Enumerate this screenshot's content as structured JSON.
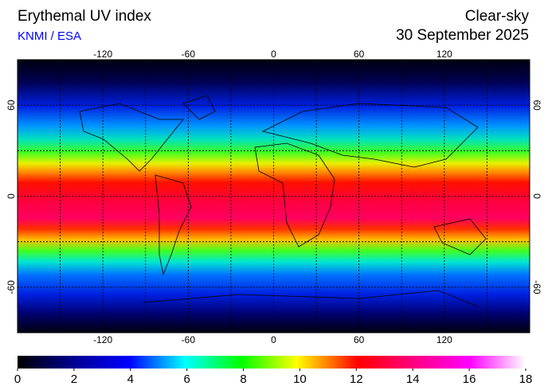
{
  "header": {
    "title": "Erythemal UV index",
    "source": "KNMI / ESA",
    "condition": "Clear-sky",
    "date": "30 September 2025"
  },
  "map": {
    "lonlim": [
      -180,
      180
    ],
    "latlim": [
      -90,
      90
    ],
    "lon_ticks": [
      -120,
      -60,
      0,
      60,
      120
    ],
    "lat_ticks": [
      60,
      0,
      -60
    ]
  },
  "colorbar": {
    "lim": [
      0,
      18
    ],
    "ticks": [
      0,
      2,
      4,
      6,
      8,
      10,
      12,
      14,
      16,
      18
    ]
  }
}
